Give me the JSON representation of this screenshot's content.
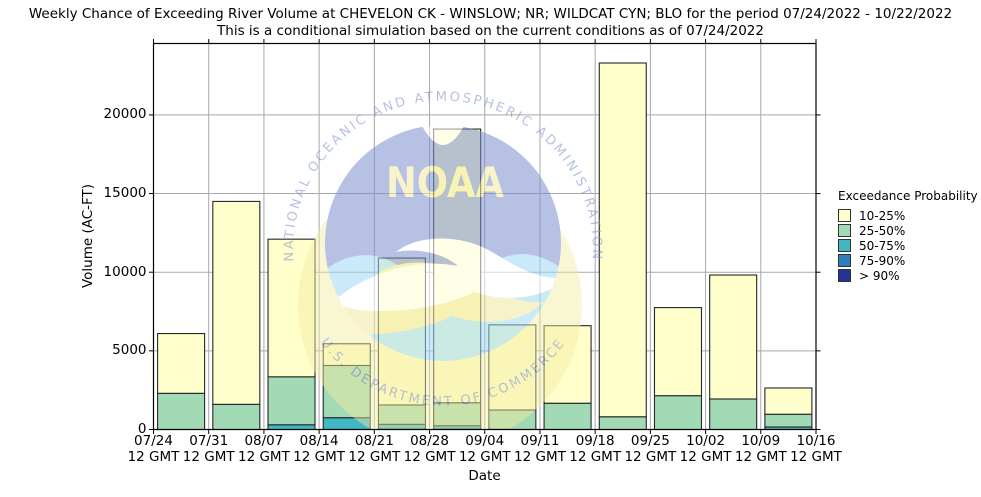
{
  "title": "Weekly Chance of Exceeding River Volume at CHEVELON CK - WINSLOW; NR; WILDCAT CYN; BLO for the period 07/24/2022 - 10/22/2022",
  "subtitle": "This is a conditional simulation based on the current conditions as of 07/24/2022",
  "axes": {
    "ylabel": "Volume (AC-FT)",
    "xlabel": "Date"
  },
  "legend": {
    "title": "Exceedance Probability",
    "items": [
      {
        "label": "10-25%",
        "color": "#ffffcc"
      },
      {
        "label": "25-50%",
        "color": "#a1dab4"
      },
      {
        "label": "50-75%",
        "color": "#41b6c4"
      },
      {
        "label": "75-90%",
        "color": "#2c7fb8"
      },
      {
        "label": "> 90%",
        "color": "#253494"
      }
    ]
  },
  "watermark": {
    "arc_top": "NATIONAL OCEANIC AND ATMOSPHERIC ADMINISTRATION",
    "arc_bottom": "U.S. DEPARTMENT OF COMMERCE",
    "emblem": "NOAA"
  },
  "chart_data": {
    "type": "stacked_bar",
    "title": "Weekly Chance of Exceeding River Volume at CHEVELON CK - WINSLOW; NR; WILDCAT CYN; BLO for the period 07/24/2022 - 10/22/2022",
    "subtitle": "This is a conditional simulation based on the current conditions as of 07/24/2022",
    "xlabel": "Date",
    "ylabel": "Volume (AC-FT)",
    "ylim": [
      0,
      24540
    ],
    "yticks": [
      0,
      5000,
      10000,
      15000,
      20000
    ],
    "grid": true,
    "legend_position": "right",
    "xtick_labels": [
      {
        "date": "07/24",
        "time": "12 GMT"
      },
      {
        "date": "07/31",
        "time": "12 GMT"
      },
      {
        "date": "08/07",
        "time": "12 GMT"
      },
      {
        "date": "08/14",
        "time": "12 GMT"
      },
      {
        "date": "08/21",
        "time": "12 GMT"
      },
      {
        "date": "08/28",
        "time": "12 GMT"
      },
      {
        "date": "09/04",
        "time": "12 GMT"
      },
      {
        "date": "09/11",
        "time": "12 GMT"
      },
      {
        "date": "09/18",
        "time": "12 GMT"
      },
      {
        "date": "09/25",
        "time": "12 GMT"
      },
      {
        "date": "10/02",
        "time": "12 GMT"
      },
      {
        "date": "10/09",
        "time": "12 GMT"
      },
      {
        "date": "10/16",
        "time": "12 GMT"
      }
    ],
    "bar_weeks_start": [
      "07/24",
      "07/31",
      "08/07",
      "08/14",
      "08/21",
      "08/28",
      "09/04",
      "09/11",
      "09/18",
      "09/25",
      "10/02",
      "10/09"
    ],
    "values_are_stack_tops_ac_ft": true,
    "series": [
      {
        "name": "10-25%",
        "color": "#ffffcc",
        "stack_top_values": [
          6100,
          14500,
          12100,
          5450,
          10900,
          19100,
          6650,
          6600,
          23300,
          7750,
          9820,
          2640
        ]
      },
      {
        "name": "25-50%",
        "color": "#a1dab4",
        "stack_top_values": [
          2300,
          1600,
          3350,
          4070,
          1560,
          1700,
          1240,
          1670,
          810,
          2150,
          1940,
          970
        ]
      },
      {
        "name": "50-75%",
        "color": "#41b6c4",
        "stack_top_values": [
          0,
          0,
          300,
          750,
          330,
          240,
          0,
          0,
          0,
          0,
          0,
          160
        ]
      },
      {
        "name": "75-90%",
        "color": "#2c7fb8",
        "stack_top_values": [
          0,
          0,
          0,
          0,
          0,
          0,
          0,
          0,
          0,
          0,
          0,
          0
        ]
      },
      {
        "name": "> 90%",
        "color": "#253494",
        "stack_top_values": [
          0,
          0,
          0,
          0,
          0,
          0,
          0,
          0,
          0,
          0,
          0,
          0
        ]
      }
    ]
  }
}
